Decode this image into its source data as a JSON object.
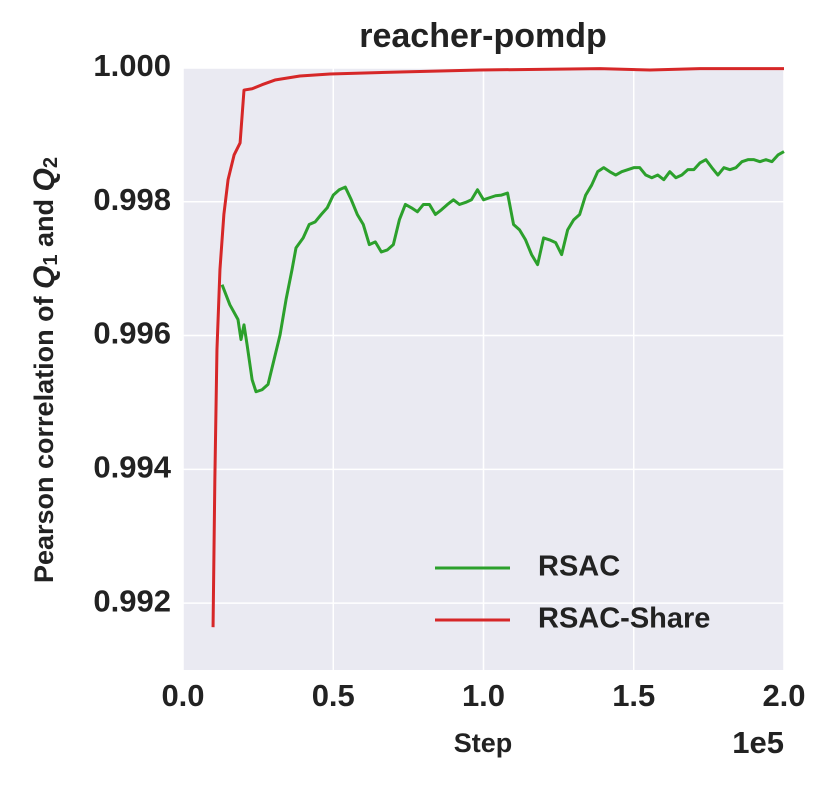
{
  "chart_data": {
    "type": "line",
    "title": "reacher-pomdp",
    "xlabel": "Step",
    "x_offset_label": "1e5",
    "ylabel": [
      "Pearson correlation of ",
      "Q",
      "1",
      " and ",
      "Q",
      "2"
    ],
    "xlim": [
      0,
      2.0
    ],
    "ylim": [
      0.991,
      1.0
    ],
    "xticks": [
      {
        "value": 0,
        "label": "0.0"
      },
      {
        "value": 0.5,
        "label": "0.5"
      },
      {
        "value": 1,
        "label": "1.0"
      },
      {
        "value": 1.5,
        "label": "1.5"
      },
      {
        "value": 2,
        "label": "2.0"
      }
    ],
    "yticks": [
      {
        "value": 0.992,
        "label": "0.992"
      },
      {
        "value": 0.994,
        "label": "0.994"
      },
      {
        "value": 0.996,
        "label": "0.996"
      },
      {
        "value": 0.998,
        "label": "0.998"
      },
      {
        "value": 1,
        "label": "1.000"
      }
    ],
    "grid": true,
    "legend": "lower right",
    "series": [
      {
        "name": "RSAC",
        "color": "#2ca02c",
        "x": [
          0.13,
          0.156,
          0.183,
          0.193,
          0.203,
          0.213,
          0.23,
          0.243,
          0.263,
          0.283,
          0.303,
          0.323,
          0.343,
          0.363,
          0.376,
          0.4,
          0.42,
          0.44,
          0.46,
          0.48,
          0.5,
          0.52,
          0.54,
          0.56,
          0.58,
          0.6,
          0.62,
          0.64,
          0.66,
          0.68,
          0.7,
          0.72,
          0.74,
          0.76,
          0.78,
          0.8,
          0.82,
          0.84,
          0.86,
          0.88,
          0.9,
          0.92,
          0.94,
          0.96,
          0.98,
          1.0,
          1.02,
          1.04,
          1.06,
          1.08,
          1.1,
          1.12,
          1.14,
          1.16,
          1.18,
          1.2,
          1.22,
          1.24,
          1.26,
          1.28,
          1.3,
          1.32,
          1.34,
          1.36,
          1.38,
          1.4,
          1.42,
          1.44,
          1.46,
          1.48,
          1.5,
          1.52,
          1.54,
          1.56,
          1.58,
          1.6,
          1.62,
          1.64,
          1.66,
          1.68,
          1.7,
          1.72,
          1.74,
          1.76,
          1.78,
          1.8,
          1.82,
          1.84,
          1.86,
          1.88,
          1.9,
          1.92,
          1.94,
          1.96,
          1.98,
          2.0
        ],
        "values": [
          0.99676,
          0.99646,
          0.99624,
          0.99594,
          0.99616,
          0.99587,
          0.99534,
          0.99516,
          0.99519,
          0.99527,
          0.99564,
          0.99601,
          0.99654,
          0.99699,
          0.99731,
          0.99746,
          0.99766,
          0.9977,
          0.99781,
          0.99791,
          0.9981,
          0.99818,
          0.99822,
          0.99803,
          0.99781,
          0.99766,
          0.99736,
          0.9974,
          0.99725,
          0.99728,
          0.99736,
          0.99773,
          0.99796,
          0.99791,
          0.99785,
          0.99796,
          0.99796,
          0.99781,
          0.99788,
          0.99796,
          0.99803,
          0.99796,
          0.99799,
          0.99803,
          0.99818,
          0.99803,
          0.99806,
          0.99809,
          0.9981,
          0.99813,
          0.99766,
          0.99758,
          0.99743,
          0.99721,
          0.99706,
          0.99746,
          0.99743,
          0.99739,
          0.99721,
          0.99758,
          0.99773,
          0.99781,
          0.9981,
          0.99825,
          0.99845,
          0.99851,
          0.99845,
          0.9984,
          0.99845,
          0.99848,
          0.99851,
          0.99851,
          0.9984,
          0.99836,
          0.9984,
          0.99833,
          0.99845,
          0.99836,
          0.9984,
          0.99848,
          0.99848,
          0.99858,
          0.99863,
          0.99851,
          0.9984,
          0.99851,
          0.99848,
          0.99851,
          0.9986,
          0.99863,
          0.99863,
          0.9986,
          0.99863,
          0.9986,
          0.9987,
          0.99875
        ]
      },
      {
        "name": "RSAC-Share",
        "color": "#d62728",
        "x": [
          0.1,
          0.106,
          0.113,
          0.123,
          0.136,
          0.15,
          0.17,
          0.19,
          0.203,
          0.23,
          0.263,
          0.306,
          0.389,
          0.489,
          0.722,
          0.988,
          1.388,
          1.554,
          1.72,
          2.0
        ],
        "values": [
          0.99164,
          0.99385,
          0.99579,
          0.99699,
          0.99781,
          0.99833,
          0.9987,
          0.99888,
          0.99967,
          0.99969,
          0.99975,
          0.99982,
          0.99988,
          0.99991,
          0.99994,
          0.99997,
          0.99999,
          0.99997,
          0.99999,
          0.99999
        ]
      }
    ]
  }
}
